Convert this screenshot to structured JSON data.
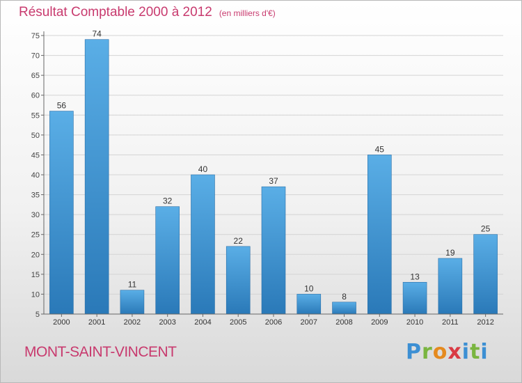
{
  "title": "Résultat Comptable 2000 à 2012",
  "subtitle": "(en milliers d'€)",
  "location": "MONT-SAINT-VINCENT",
  "logo": {
    "letters": [
      "P",
      "r",
      "o",
      "x",
      "i",
      "t",
      "i"
    ]
  },
  "colors": {
    "accent": "#c83a6e",
    "bar_light": "#5aaee6",
    "bar_dark": "#2a79b8"
  },
  "chart_data": {
    "type": "bar",
    "title": "Résultat Comptable 2000 à 2012",
    "subtitle": "(en milliers d'€)",
    "xlabel": "",
    "ylabel": "",
    "categories": [
      "2000",
      "2001",
      "2002",
      "2003",
      "2004",
      "2005",
      "2006",
      "2007",
      "2008",
      "2009",
      "2010",
      "2011",
      "2012"
    ],
    "values": [
      56,
      74,
      11,
      32,
      40,
      22,
      37,
      10,
      8,
      45,
      13,
      19,
      25
    ],
    "ylim": [
      5,
      75
    ],
    "yticks": [
      5,
      10,
      15,
      20,
      25,
      30,
      35,
      40,
      45,
      50,
      55,
      60,
      65,
      70,
      75
    ],
    "grid": true
  }
}
